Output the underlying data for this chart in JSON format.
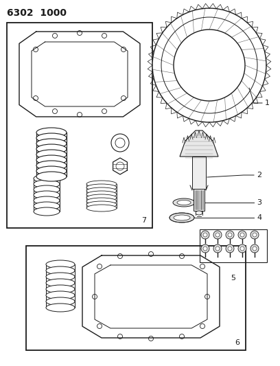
{
  "title": "6302  1000",
  "bg_color": "#ffffff",
  "line_color": "#1a1a1a",
  "title_fontsize": 10,
  "label_fontsize": 8,
  "figsize": [
    4.08,
    5.33
  ],
  "dpi": 100
}
